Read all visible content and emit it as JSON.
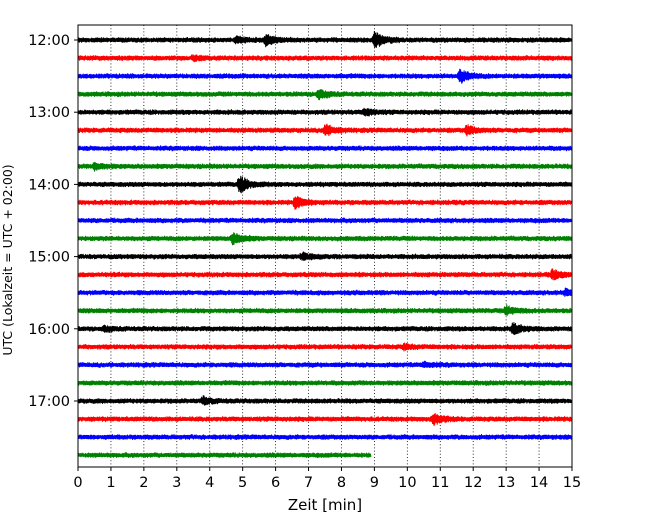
{
  "chart_data": {
    "type": "line",
    "title": "",
    "xlabel": "Zeit  [min]",
    "ylabel": "UTC (Lokalzeit = UTC + 02:00)",
    "xlim": [
      0,
      15
    ],
    "x_ticks": [
      0,
      1,
      2,
      3,
      4,
      5,
      6,
      7,
      8,
      9,
      10,
      11,
      12,
      13,
      14,
      15
    ],
    "y_tick_labels": [
      "12:00",
      "13:00",
      "14:00",
      "15:00",
      "16:00",
      "17:00"
    ],
    "y_tick_hours": [
      12,
      13,
      14,
      15,
      16,
      17
    ],
    "trace_interval_minutes": 15,
    "first_trace": "12:00",
    "grid": "vertical dotted at each minute",
    "colors": [
      "#000000",
      "#ff0000",
      "#0000ff",
      "#008000"
    ],
    "traces": [
      {
        "start": "12:00",
        "color": "#000000",
        "end_min": 15,
        "events": [
          {
            "t": 5.7,
            "amp": 5
          },
          {
            "t": 9.0,
            "amp": 8
          },
          {
            "t": 4.8,
            "amp": 3
          }
        ]
      },
      {
        "start": "12:15",
        "color": "#ff0000",
        "end_min": 15,
        "events": [
          {
            "t": 3.5,
            "amp": 2
          }
        ]
      },
      {
        "start": "12:30",
        "color": "#0000ff",
        "end_min": 15,
        "events": [
          {
            "t": 11.6,
            "amp": 6
          }
        ]
      },
      {
        "start": "12:45",
        "color": "#008000",
        "end_min": 15,
        "events": [
          {
            "t": 7.3,
            "amp": 4
          }
        ]
      },
      {
        "start": "13:00",
        "color": "#000000",
        "end_min": 15,
        "events": [
          {
            "t": 8.7,
            "amp": 3
          }
        ]
      },
      {
        "start": "13:15",
        "color": "#ff0000",
        "end_min": 15,
        "events": [
          {
            "t": 7.5,
            "amp": 5
          },
          {
            "t": 11.8,
            "amp": 4
          }
        ]
      },
      {
        "start": "13:30",
        "color": "#0000ff",
        "end_min": 15,
        "events": []
      },
      {
        "start": "13:45",
        "color": "#008000",
        "end_min": 15,
        "events": [
          {
            "t": 0.5,
            "amp": 3
          }
        ]
      },
      {
        "start": "14:00",
        "color": "#000000",
        "end_min": 15,
        "events": [
          {
            "t": 4.9,
            "amp": 8
          }
        ]
      },
      {
        "start": "14:15",
        "color": "#ff0000",
        "end_min": 15,
        "events": [
          {
            "t": 6.6,
            "amp": 6
          }
        ]
      },
      {
        "start": "14:30",
        "color": "#0000ff",
        "end_min": 15,
        "events": []
      },
      {
        "start": "14:45",
        "color": "#008000",
        "end_min": 15,
        "events": [
          {
            "t": 4.7,
            "amp": 5
          }
        ]
      },
      {
        "start": "15:00",
        "color": "#000000",
        "end_min": 15,
        "events": [
          {
            "t": 6.8,
            "amp": 3
          }
        ]
      },
      {
        "start": "15:15",
        "color": "#ff0000",
        "end_min": 15,
        "events": [
          {
            "t": 14.4,
            "amp": 4
          }
        ]
      },
      {
        "start": "15:30",
        "color": "#0000ff",
        "end_min": 15,
        "events": [
          {
            "t": 14.8,
            "amp": 3
          }
        ]
      },
      {
        "start": "15:45",
        "color": "#008000",
        "end_min": 15,
        "events": [
          {
            "t": 13.0,
            "amp": 4
          }
        ]
      },
      {
        "start": "16:00",
        "color": "#000000",
        "end_min": 15,
        "events": [
          {
            "t": 13.2,
            "amp": 5
          },
          {
            "t": 0.8,
            "amp": 2
          }
        ]
      },
      {
        "start": "16:15",
        "color": "#ff0000",
        "end_min": 15,
        "events": [
          {
            "t": 9.9,
            "amp": 2
          }
        ]
      },
      {
        "start": "16:30",
        "color": "#0000ff",
        "end_min": 15,
        "events": [
          {
            "t": 10.5,
            "amp": 2
          }
        ]
      },
      {
        "start": "16:45",
        "color": "#008000",
        "end_min": 15,
        "events": []
      },
      {
        "start": "17:00",
        "color": "#000000",
        "end_min": 15,
        "events": [
          {
            "t": 3.8,
            "amp": 3
          }
        ]
      },
      {
        "start": "17:15",
        "color": "#ff0000",
        "end_min": 15,
        "events": [
          {
            "t": 10.8,
            "amp": 5
          }
        ]
      },
      {
        "start": "17:30",
        "color": "#0000ff",
        "end_min": 15,
        "events": []
      },
      {
        "start": "17:45",
        "color": "#008000",
        "end_min": 8.9,
        "events": []
      }
    ]
  }
}
